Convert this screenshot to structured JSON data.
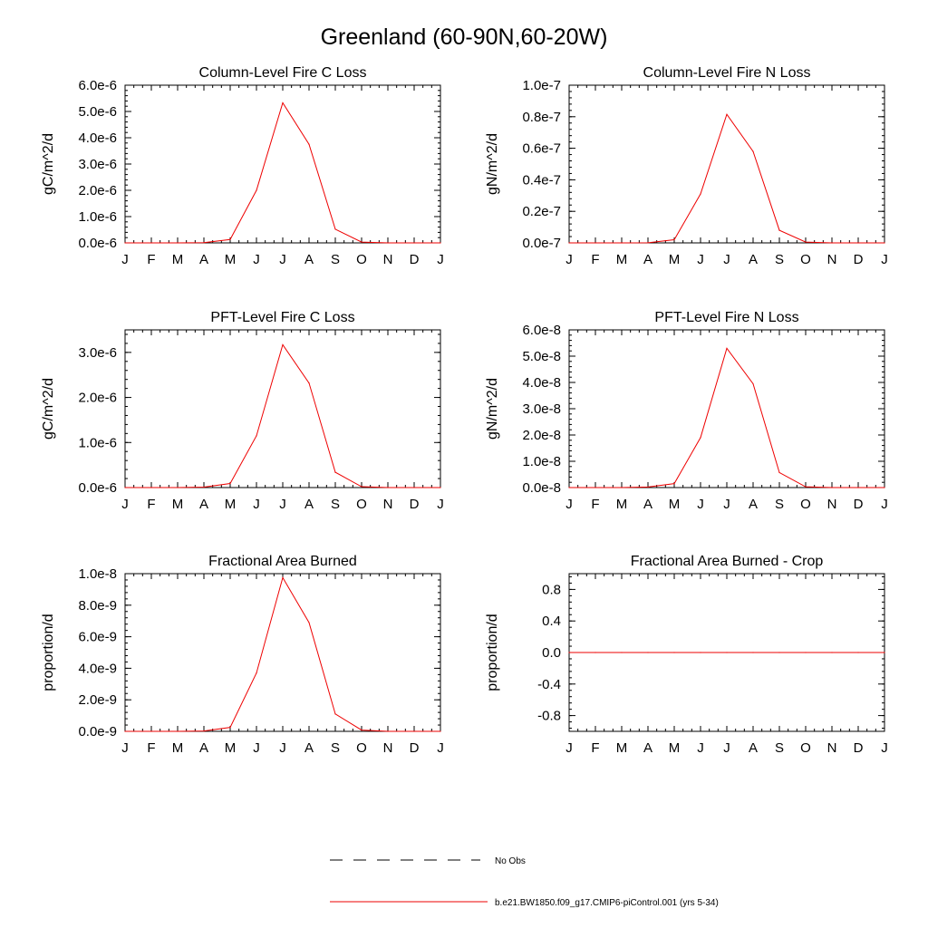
{
  "figure": {
    "title": "Greenland (60-90N,60-20W)",
    "line_color": "#ee0000",
    "axis_color": "#000000"
  },
  "legend": {
    "entries": [
      {
        "label": "No Obs",
        "style": "dashed",
        "color": "#000000"
      },
      {
        "label": "b.e21.BW1850.f09_g17.CMIP6-piControl.001 (yrs 5-34)",
        "style": "solid",
        "color": "#ee0000"
      }
    ]
  },
  "chart_data": [
    {
      "type": "line",
      "title": "Column-Level Fire C Loss",
      "ylabel": "gC/m^2/d",
      "xlabel": "",
      "categories": [
        "J",
        "F",
        "M",
        "A",
        "M",
        "J",
        "J",
        "A",
        "S",
        "O",
        "N",
        "D",
        "J"
      ],
      "ylim": [
        0,
        6e-06
      ],
      "yticks": [
        0,
        1e-06,
        2e-06,
        3e-06,
        4e-06,
        5e-06,
        6e-06
      ],
      "yticklabels": [
        "0.0e-6",
        "1.0e-6",
        "2.0e-6",
        "3.0e-6",
        "4.0e-6",
        "5.0e-6",
        "6.0e-6"
      ],
      "series": [
        {
          "name": "b.e21.BW1850.f09_g17.CMIP6-piControl.001 (yrs 5-34)",
          "values": [
            0,
            0,
            0,
            1e-08,
            1.3e-07,
            2e-06,
            5.33e-06,
            3.75e-06,
            5.2e-07,
            3e-08,
            0,
            0,
            0
          ]
        }
      ]
    },
    {
      "type": "line",
      "title": "Column-Level Fire N Loss",
      "ylabel": "gN/m^2/d",
      "xlabel": "",
      "categories": [
        "J",
        "F",
        "M",
        "A",
        "M",
        "J",
        "J",
        "A",
        "S",
        "O",
        "N",
        "D",
        "J"
      ],
      "ylim": [
        0,
        1e-07
      ],
      "yticks": [
        0,
        2e-08,
        4e-08,
        6e-08,
        8e-08,
        1e-07
      ],
      "yticklabels": [
        "0.0e-7",
        "0.2e-7",
        "0.4e-7",
        "0.6e-7",
        "0.8e-7",
        "1.0e-7"
      ],
      "series": [
        {
          "name": "b.e21.BW1850.f09_g17.CMIP6-piControl.001 (yrs 5-34)",
          "values": [
            0,
            0,
            0,
            1e-10,
            2e-09,
            3.1e-08,
            8.15e-08,
            5.8e-08,
            8e-09,
            5e-10,
            0,
            0,
            0
          ]
        }
      ]
    },
    {
      "type": "line",
      "title": "PFT-Level Fire C Loss",
      "ylabel": "gC/m^2/d",
      "xlabel": "",
      "categories": [
        "J",
        "F",
        "M",
        "A",
        "M",
        "J",
        "J",
        "A",
        "S",
        "O",
        "N",
        "D",
        "J"
      ],
      "ylim": [
        0,
        3.5e-06
      ],
      "yticks": [
        0,
        1e-06,
        2e-06,
        3e-06
      ],
      "yticklabels": [
        "0.0e-6",
        "1.0e-6",
        "2.0e-6",
        "3.0e-6"
      ],
      "series": [
        {
          "name": "b.e21.BW1850.f09_g17.CMIP6-piControl.001 (yrs 5-34)",
          "values": [
            0,
            0,
            0,
            1e-08,
            9e-08,
            1.15e-06,
            3.17e-06,
            2.32e-06,
            3.4e-07,
            2e-08,
            0,
            0,
            0
          ]
        }
      ]
    },
    {
      "type": "line",
      "title": "PFT-Level Fire N Loss",
      "ylabel": "gN/m^2/d",
      "xlabel": "",
      "categories": [
        "J",
        "F",
        "M",
        "A",
        "M",
        "J",
        "J",
        "A",
        "S",
        "O",
        "N",
        "D",
        "J"
      ],
      "ylim": [
        0,
        6e-08
      ],
      "yticks": [
        0,
        1e-08,
        2e-08,
        3e-08,
        4e-08,
        5e-08,
        6e-08
      ],
      "yticklabels": [
        "0.0e-8",
        "1.0e-8",
        "2.0e-8",
        "3.0e-8",
        "4.0e-8",
        "5.0e-8",
        "6.0e-8"
      ],
      "series": [
        {
          "name": "b.e21.BW1850.f09_g17.CMIP6-piControl.001 (yrs 5-34)",
          "values": [
            0,
            0,
            0,
            2e-10,
            1.5e-09,
            1.9e-08,
            5.3e-08,
            3.95e-08,
            5.7e-09,
            3e-10,
            0,
            0,
            0
          ]
        }
      ]
    },
    {
      "type": "line",
      "title": "Fractional Area Burned",
      "ylabel": "proportion/d",
      "xlabel": "",
      "categories": [
        "J",
        "F",
        "M",
        "A",
        "M",
        "J",
        "J",
        "A",
        "S",
        "O",
        "N",
        "D",
        "J"
      ],
      "ylim": [
        0,
        1e-08
      ],
      "yticks": [
        0,
        2e-09,
        4e-09,
        6e-09,
        8e-09,
        1e-08
      ],
      "yticklabels": [
        "0.0e-9",
        "2.0e-9",
        "4.0e-9",
        "6.0e-9",
        "8.0e-9",
        "1.0e-8"
      ],
      "series": [
        {
          "name": "b.e21.BW1850.f09_g17.CMIP6-piControl.001 (yrs 5-34)",
          "values": [
            0,
            0,
            0,
            2e-11,
            2.5e-10,
            3.7e-09,
            9.75e-09,
            6.9e-09,
            1.1e-09,
            8e-11,
            0,
            0,
            0
          ]
        }
      ]
    },
    {
      "type": "line",
      "title": "Fractional Area Burned - Crop",
      "ylabel": "proportion/d",
      "xlabel": "",
      "categories": [
        "J",
        "F",
        "M",
        "A",
        "M",
        "J",
        "J",
        "A",
        "S",
        "O",
        "N",
        "D",
        "J"
      ],
      "ylim": [
        -1.0,
        1.0
      ],
      "yticks": [
        -0.8,
        -0.4,
        0.0,
        0.4,
        0.8
      ],
      "yticklabels": [
        "-0.8",
        "-0.4",
        "0.0",
        "0.4",
        "0.8"
      ],
      "series": [
        {
          "name": "b.e21.BW1850.f09_g17.CMIP6-piControl.001 (yrs 5-34)",
          "values": [
            0,
            0,
            0,
            0,
            0,
            0,
            0,
            0,
            0,
            0,
            0,
            0,
            0
          ]
        }
      ]
    }
  ]
}
